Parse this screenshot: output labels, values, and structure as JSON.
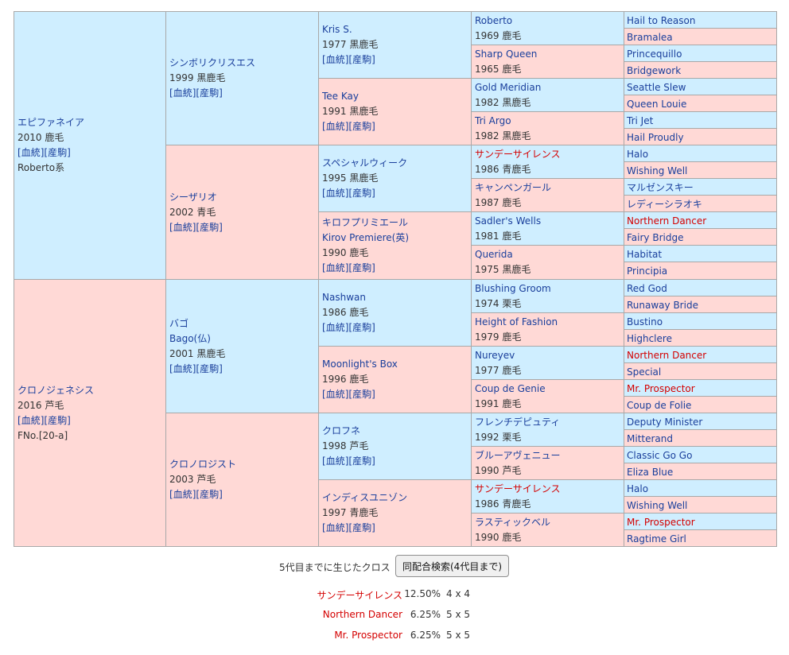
{
  "links": {
    "bloodline": "血統",
    "produce": "産駒"
  },
  "gen1": [
    {
      "name": "エピファネイア",
      "year": "2010",
      "color": "鹿毛",
      "extra": "Roberto系",
      "sex": "m"
    },
    {
      "name": "クロノジェネシス",
      "year": "2016",
      "color": "芦毛",
      "extra": "FNo.[20-a]",
      "sex": "f"
    }
  ],
  "gen2": [
    {
      "name": "シンボリクリスエス",
      "year": "1999",
      "color": "黒鹿毛",
      "sex": "m"
    },
    {
      "name": "シーザリオ",
      "year": "2002",
      "color": "青毛",
      "sex": "f"
    },
    {
      "name": "バゴ",
      "alt": "Bago(仏)",
      "year": "2001",
      "color": "黒鹿毛",
      "sex": "m"
    },
    {
      "name": "クロノロジスト",
      "year": "2003",
      "color": "芦毛",
      "sex": "f"
    }
  ],
  "gen3": [
    {
      "name": "Kris S.",
      "year": "1977",
      "color": "黒鹿毛",
      "sex": "m"
    },
    {
      "name": "Tee Kay",
      "year": "1991",
      "color": "黒鹿毛",
      "sex": "f"
    },
    {
      "name": "スペシャルウィーク",
      "year": "1995",
      "color": "黒鹿毛",
      "sex": "m"
    },
    {
      "name": "キロフプリミエール",
      "alt": "Kirov Premiere(英)",
      "year": "1990",
      "color": "鹿毛",
      "sex": "f"
    },
    {
      "name": "Nashwan",
      "year": "1986",
      "color": "鹿毛",
      "sex": "m"
    },
    {
      "name": "Moonlight's Box",
      "year": "1996",
      "color": "鹿毛",
      "sex": "f"
    },
    {
      "name": "クロフネ",
      "year": "1998",
      "color": "芦毛",
      "sex": "m"
    },
    {
      "name": "インディスユニゾン",
      "year": "1997",
      "color": "青鹿毛",
      "sex": "f"
    }
  ],
  "gen4": [
    {
      "name": "Roberto",
      "year": "1969",
      "color": "鹿毛",
      "sex": "m"
    },
    {
      "name": "Sharp Queen",
      "year": "1965",
      "color": "鹿毛",
      "sex": "f"
    },
    {
      "name": "Gold Meridian",
      "year": "1982",
      "color": "黒鹿毛",
      "sex": "m"
    },
    {
      "name": "Tri Argo",
      "year": "1982",
      "color": "黒鹿毛",
      "sex": "f"
    },
    {
      "name": "サンデーサイレンス",
      "year": "1986",
      "color": "青鹿毛",
      "sex": "m",
      "cross": true
    },
    {
      "name": "キャンペンガール",
      "year": "1987",
      "color": "鹿毛",
      "sex": "f"
    },
    {
      "name": "Sadler's Wells",
      "year": "1981",
      "color": "鹿毛",
      "sex": "m"
    },
    {
      "name": "Querida",
      "year": "1975",
      "color": "黒鹿毛",
      "sex": "f"
    },
    {
      "name": "Blushing Groom",
      "year": "1974",
      "color": "栗毛",
      "sex": "m"
    },
    {
      "name": "Height of Fashion",
      "year": "1979",
      "color": "鹿毛",
      "sex": "f"
    },
    {
      "name": "Nureyev",
      "year": "1977",
      "color": "鹿毛",
      "sex": "m"
    },
    {
      "name": "Coup de Genie",
      "year": "1991",
      "color": "鹿毛",
      "sex": "f"
    },
    {
      "name": "フレンチデピュティ",
      "year": "1992",
      "color": "栗毛",
      "sex": "m"
    },
    {
      "name": "ブルーアヴェニュー",
      "year": "1990",
      "color": "芦毛",
      "sex": "f"
    },
    {
      "name": "サンデーサイレンス",
      "year": "1986",
      "color": "青鹿毛",
      "sex": "m",
      "cross": true
    },
    {
      "name": "ラスティックベル",
      "year": "1990",
      "color": "鹿毛",
      "sex": "f"
    }
  ],
  "gen5": [
    {
      "name": "Hail to Reason",
      "sex": "m"
    },
    {
      "name": "Bramalea",
      "sex": "f"
    },
    {
      "name": "Princequillo",
      "sex": "m"
    },
    {
      "name": "Bridgework",
      "sex": "f"
    },
    {
      "name": "Seattle Slew",
      "sex": "m"
    },
    {
      "name": "Queen Louie",
      "sex": "f"
    },
    {
      "name": "Tri Jet",
      "sex": "m"
    },
    {
      "name": "Hail Proudly",
      "sex": "f"
    },
    {
      "name": "Halo",
      "sex": "m"
    },
    {
      "name": "Wishing Well",
      "sex": "f"
    },
    {
      "name": "マルゼンスキー",
      "sex": "m"
    },
    {
      "name": "レディーシラオキ",
      "sex": "f"
    },
    {
      "name": "Northern Dancer",
      "sex": "m",
      "cross": true
    },
    {
      "name": "Fairy Bridge",
      "sex": "f"
    },
    {
      "name": "Habitat",
      "sex": "m"
    },
    {
      "name": "Principia",
      "sex": "f"
    },
    {
      "name": "Red God",
      "sex": "m"
    },
    {
      "name": "Runaway Bride",
      "sex": "f"
    },
    {
      "name": "Bustino",
      "sex": "m"
    },
    {
      "name": "Highclere",
      "sex": "f"
    },
    {
      "name": "Northern Dancer",
      "sex": "m",
      "cross": true
    },
    {
      "name": "Special",
      "sex": "f"
    },
    {
      "name": "Mr. Prospector",
      "sex": "m",
      "cross": true
    },
    {
      "name": "Coup de Folie",
      "sex": "f"
    },
    {
      "name": "Deputy Minister",
      "sex": "m"
    },
    {
      "name": "Mitterand",
      "sex": "f"
    },
    {
      "name": "Classic Go Go",
      "sex": "m"
    },
    {
      "name": "Eliza Blue",
      "sex": "f"
    },
    {
      "name": "Halo",
      "sex": "m"
    },
    {
      "name": "Wishing Well",
      "sex": "f"
    },
    {
      "name": "Mr. Prospector",
      "sex": "m",
      "cross": true
    },
    {
      "name": "Ragtime Girl",
      "sex": "f"
    }
  ],
  "cross": {
    "label": "5代目までに生じたクロス",
    "search_button": "同配合検索(4代目まで)",
    "rows": [
      {
        "name": "サンデーサイレンス",
        "pct": "12.50%",
        "gen": "4 x 4"
      },
      {
        "name": "Northern Dancer",
        "pct": "6.25%",
        "gen": "5 x 5"
      },
      {
        "name": "Mr. Prospector",
        "pct": "6.25%",
        "gen": "5 x 5"
      }
    ]
  },
  "colors": {
    "male_bg": "#cfeeff",
    "female_bg": "#ffd9d6",
    "link": "#1a3f9c",
    "cross": "#d40000"
  }
}
